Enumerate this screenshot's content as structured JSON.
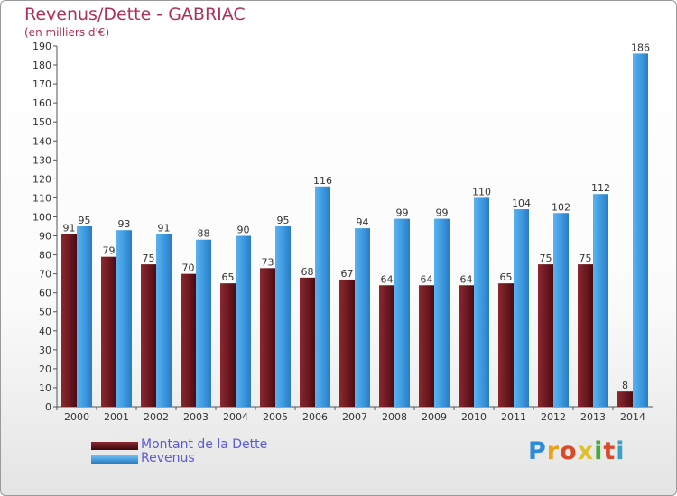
{
  "title": "Revenus/Dette - GABRIAC",
  "subtitle": "(en milliers d'€)",
  "brand": "Proxiti",
  "colors": {
    "dette": "#6e1a20",
    "revenus": "#3e9ae0",
    "title": "#b0305a",
    "legend_text": "#5b5bd6"
  },
  "chart_data": {
    "type": "bar",
    "title": "Revenus/Dette - GABRIAC",
    "ylabel": "(en milliers d'€)",
    "xlabel": "",
    "ylim": [
      0,
      190
    ],
    "ytick_step": 10,
    "grid": false,
    "legend_position": "bottom-left",
    "categories": [
      "2000",
      "2001",
      "2002",
      "2003",
      "2004",
      "2005",
      "2006",
      "2007",
      "2008",
      "2009",
      "2010",
      "2011",
      "2012",
      "2013",
      "2014"
    ],
    "series": [
      {
        "name": "Montant de la Dette",
        "values": [
          91,
          79,
          75,
          70,
          65,
          73,
          68,
          67,
          64,
          64,
          64,
          65,
          75,
          75,
          8
        ]
      },
      {
        "name": "Revenus",
        "values": [
          95,
          93,
          91,
          88,
          90,
          95,
          116,
          94,
          99,
          99,
          110,
          104,
          102,
          112,
          186
        ]
      }
    ]
  }
}
